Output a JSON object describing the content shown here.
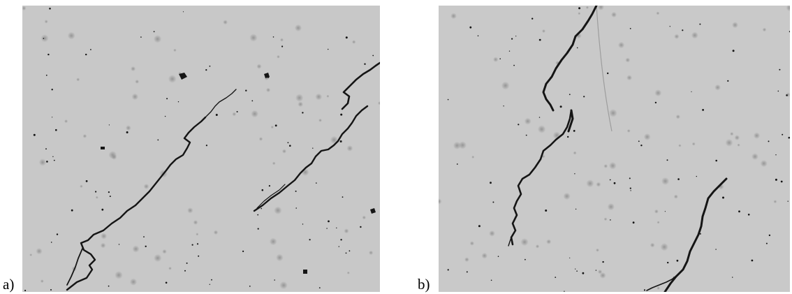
{
  "panels": [
    {
      "label": "a)",
      "background": "#c8c8c8",
      "crack_color": "#151515",
      "dust_color": "#9a9a9a"
    },
    {
      "label": "b)",
      "background": "#c9c9c9",
      "crack_color": "#151515",
      "dust_color": "#9a9a9a"
    }
  ]
}
